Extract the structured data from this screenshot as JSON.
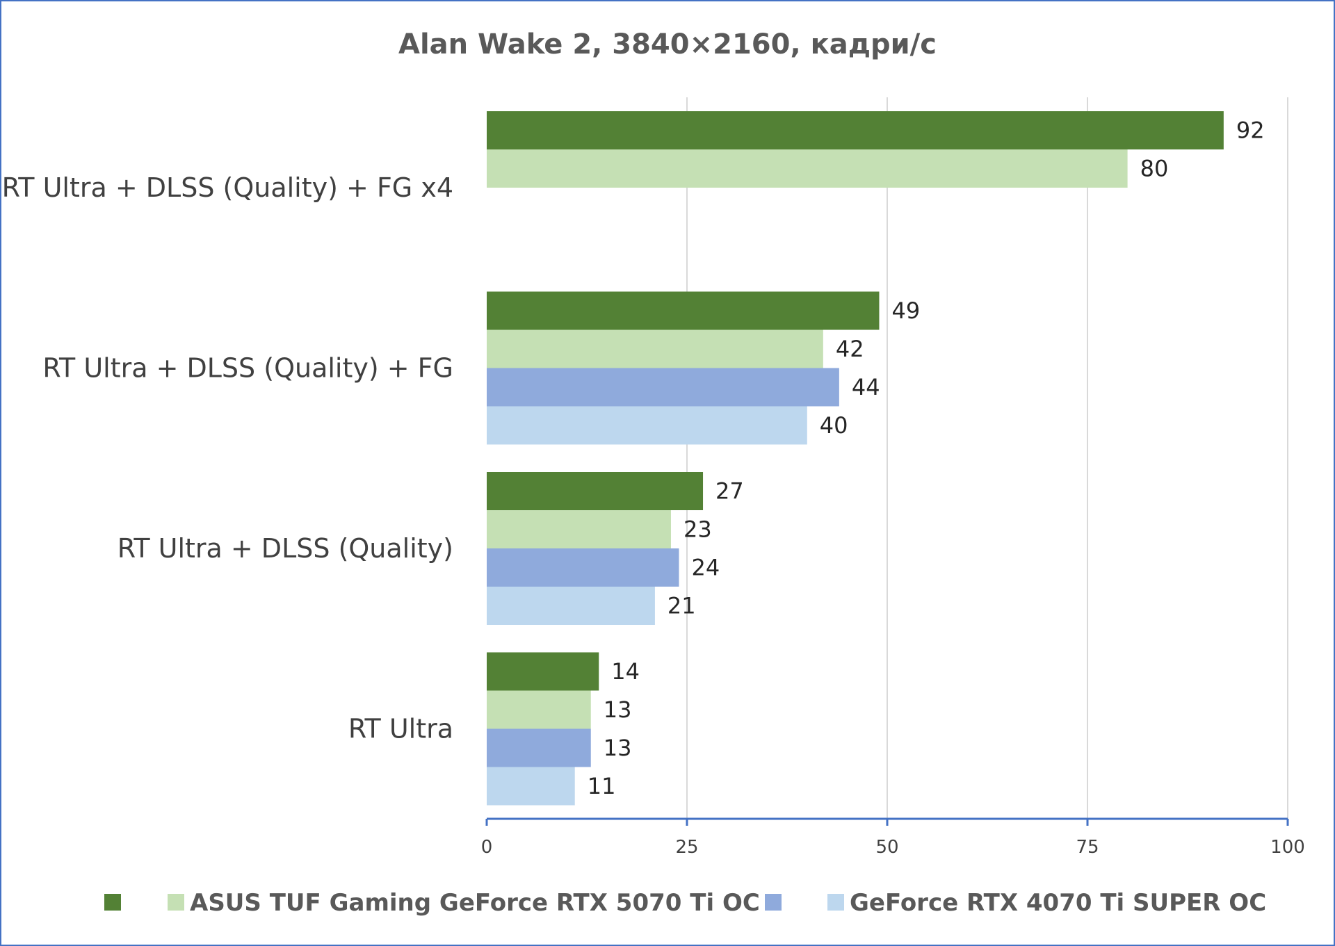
{
  "chart_data": {
    "type": "bar",
    "orientation": "horizontal",
    "title": "Alan Wake 2, 3840×2160, кадри/с",
    "categories": [
      "RT Ultra + DLSS (Quality) + FG x4",
      "RT Ultra + DLSS (Quality) + FG",
      "RT Ultra + DLSS (Quality)",
      "RT Ultra"
    ],
    "series": [
      {
        "color": "#538135",
        "values": [
          92,
          49,
          27,
          14
        ]
      },
      {
        "name": "ASUS TUF Gaming GeForce RTX 5070 Ti OC",
        "color": "#c5e0b4",
        "values": [
          80,
          42,
          23,
          13
        ]
      },
      {
        "color": "#8faadc",
        "values": [
          null,
          44,
          24,
          13
        ]
      },
      {
        "name": "GeForce RTX 4070 Ti SUPER OC",
        "color": "#bdd7ee",
        "values": [
          null,
          40,
          21,
          11
        ]
      }
    ],
    "xlim": [
      0,
      100
    ],
    "x_ticks": [
      0,
      25,
      50,
      75,
      100
    ],
    "grid": true,
    "legend_position": "bottom"
  }
}
